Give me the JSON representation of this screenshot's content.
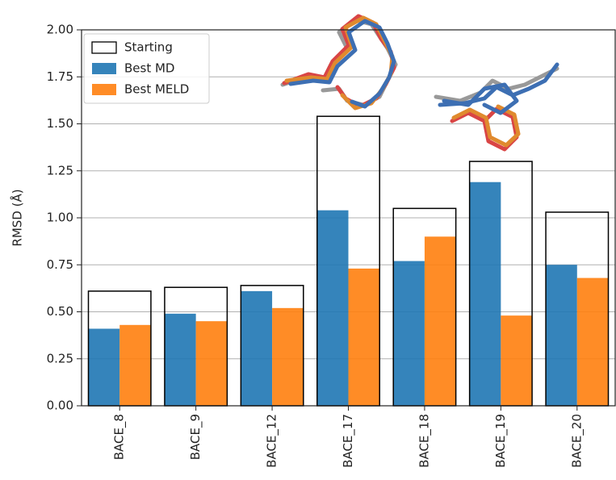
{
  "chart_data": {
    "type": "bar",
    "y_label": "RMSD (Å)",
    "categories": [
      "BACE_8",
      "BACE_9",
      "BACE_12",
      "BACE_17",
      "BACE_18",
      "BACE_19",
      "BACE_20"
    ],
    "series": [
      {
        "name": "Starting",
        "color": "#000000",
        "outline": true,
        "values": [
          0.61,
          0.63,
          0.64,
          1.54,
          1.05,
          1.3,
          1.03
        ]
      },
      {
        "name": "Best MD",
        "color": "#1f77b4",
        "values": [
          0.41,
          0.49,
          0.61,
          1.04,
          0.77,
          1.19,
          0.75
        ]
      },
      {
        "name": "Best MELD",
        "color": "#ff7f0e",
        "values": [
          0.43,
          0.45,
          0.52,
          0.73,
          0.9,
          0.48,
          0.68
        ]
      }
    ],
    "ylim": [
      0,
      2
    ],
    "yticks": [
      {
        "value": 0,
        "label": "0.00"
      },
      {
        "value": 0.25,
        "label": "0.25"
      },
      {
        "value": 0.5,
        "label": "0.50"
      },
      {
        "value": 0.75,
        "label": "0.75"
      },
      {
        "value": 1,
        "label": "1.00"
      },
      {
        "value": 1.25,
        "label": "1.25"
      },
      {
        "value": 1.5,
        "label": "1.50"
      },
      {
        "value": 1.75,
        "label": "1.75"
      },
      {
        "value": 2,
        "label": "2.00"
      }
    ],
    "grid": true,
    "legend": "upper left"
  }
}
